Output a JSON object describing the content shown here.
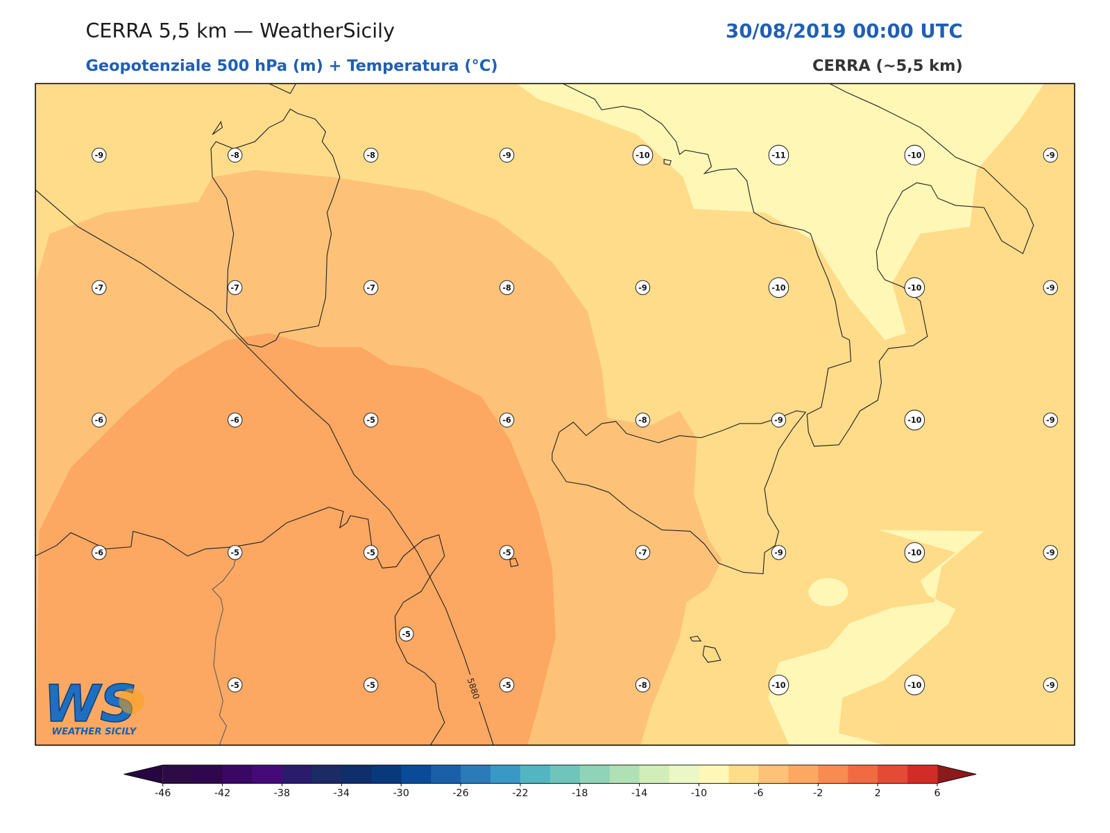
{
  "header": {
    "title": "CERRA 5,5 km — WeatherSicily",
    "date": "30/08/2019 00:00 UTC",
    "subtitle": "Geopotenziale 500 hPa (m) + Temperatura (°C)",
    "model": "CERRA (~5,5 km)"
  },
  "map": {
    "temperature_grid": [
      [
        -9,
        -8,
        -8,
        -9,
        -10,
        -11,
        -10,
        -9
      ],
      [
        -7,
        -7,
        -7,
        -8,
        -9,
        -10,
        -10,
        -9
      ],
      [
        -6,
        -6,
        -5,
        -6,
        -8,
        -9,
        -10,
        -9
      ],
      [
        -6,
        -5,
        -5,
        -5,
        -7,
        -9,
        -10,
        -9
      ],
      [
        null,
        -5,
        -5,
        -5,
        -8,
        -10,
        -10,
        -9
      ]
    ],
    "extra_label": -5,
    "contour_label": "5880"
  },
  "colorbar": {
    "ticks": [
      -46,
      -42,
      -38,
      -34,
      -30,
      -26,
      -22,
      -18,
      -14,
      -10,
      -6,
      -2,
      2,
      6
    ],
    "colors": [
      "#2d0b47",
      "#30074f",
      "#3b0764",
      "#450a78",
      "#2a1b6b",
      "#1c2a66",
      "#0e2f6b",
      "#08397a",
      "#0a4a96",
      "#1a5fa8",
      "#2a7bb8",
      "#3a98c4",
      "#53b5c2",
      "#6fc4bc",
      "#8fd3b8",
      "#b0e0b5",
      "#d2eeb8",
      "#ebf7c4",
      "#fff7b5",
      "#fedc8a",
      "#fdc278",
      "#fca862",
      "#f98b50",
      "#f26a42",
      "#e44a34",
      "#d22c26"
    ],
    "under_color": "#27063f",
    "over_color": "#8b1a1a"
  },
  "logo": {
    "mark": "WS",
    "name": "WEATHER SICILY"
  }
}
